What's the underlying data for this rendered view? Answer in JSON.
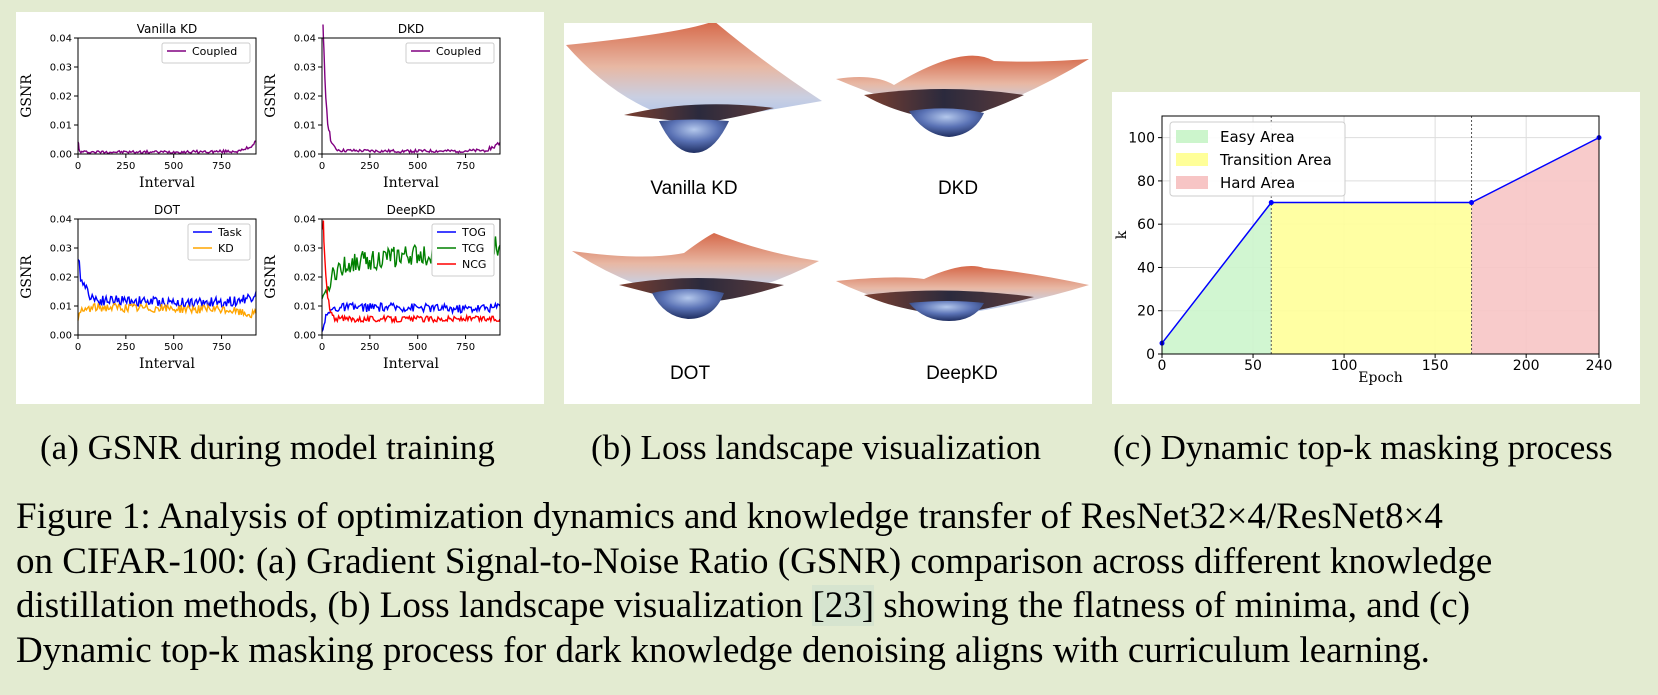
{
  "panel_a": {
    "caption": "(a) GSNR during model training",
    "subplots": [
      {
        "title": "Vanilla KD",
        "ylabel": "GSNR",
        "xlabel": "Interval",
        "legend": [
          "Coupled"
        ]
      },
      {
        "title": "DKD",
        "ylabel": "GSNR",
        "xlabel": "Interval",
        "legend": [
          "Coupled"
        ]
      },
      {
        "title": "DOT",
        "ylabel": "GSNR",
        "xlabel": "Interval",
        "legend": [
          "Task",
          "KD"
        ]
      },
      {
        "title": "DeepKD",
        "ylabel": "GSNR",
        "xlabel": "Interval",
        "legend": [
          "TOG",
          "TCG",
          "NCG"
        ]
      }
    ],
    "yticks": [
      "0.00",
      "0.01",
      "0.02",
      "0.03",
      "0.04"
    ],
    "xticks": [
      "0",
      "250",
      "500",
      "750"
    ]
  },
  "panel_b": {
    "caption": "(b) Loss landscape visualization",
    "labels": [
      "Vanilla KD",
      "DKD",
      "DOT",
      "DeepKD"
    ]
  },
  "panel_c": {
    "caption": "(c) Dynamic top-k masking process",
    "legend": [
      "Easy Area",
      "Transition Area",
      "Hard Area"
    ],
    "xlabel": "Epoch",
    "ylabel": "k",
    "xticks": [
      "0",
      "50",
      "100",
      "150",
      "200",
      "240"
    ],
    "yticks": [
      "0",
      "20",
      "40",
      "60",
      "80",
      "100"
    ]
  },
  "figure_caption": {
    "line1": "Figure 1: Analysis of optimization dynamics and knowledge transfer of ResNet32×4/ResNet8×4",
    "line2": "on CIFAR-100: (a) Gradient Signal-to-Noise Ratio (GSNR) comparison across different knowledge",
    "line3a": "distillation methods, (b) Loss landscape visualization ",
    "cite": "[23]",
    "line3b": " showing the flatness of minima, and (c)",
    "line4": "Dynamic top-k masking process for dark knowledge denoising aligns with curriculum learning."
  },
  "chart_data": [
    {
      "type": "line",
      "title": "Vanilla KD",
      "xlabel": "Interval",
      "ylabel": "GSNR",
      "xlim": [
        0,
        930
      ],
      "ylim": [
        0,
        0.04
      ],
      "series": [
        {
          "name": "Coupled",
          "color": "#800080",
          "x": [
            0,
            5,
            10,
            20,
            100,
            300,
            500,
            700,
            850,
            900,
            930
          ],
          "y": [
            0.005,
            0.0015,
            0.0008,
            0.0007,
            0.0007,
            0.0007,
            0.0007,
            0.0008,
            0.001,
            0.0025,
            0.0045
          ]
        }
      ]
    },
    {
      "type": "line",
      "title": "DKD",
      "xlabel": "Interval",
      "ylabel": "GSNR",
      "xlim": [
        0,
        930
      ],
      "ylim": [
        0,
        0.04
      ],
      "series": [
        {
          "name": "Coupled",
          "color": "#800080",
          "x": [
            5,
            10,
            20,
            30,
            40,
            50,
            60,
            80,
            100,
            300,
            500,
            700,
            850,
            900,
            930
          ],
          "y": [
            0.04,
            0.033,
            0.02,
            0.012,
            0.007,
            0.004,
            0.0025,
            0.0015,
            0.0012,
            0.001,
            0.001,
            0.001,
            0.0012,
            0.0025,
            0.004
          ]
        }
      ]
    },
    {
      "type": "line",
      "title": "DOT",
      "xlabel": "Interval",
      "ylabel": "GSNR",
      "xlim": [
        0,
        930
      ],
      "ylim": [
        0,
        0.04
      ],
      "series": [
        {
          "name": "Task",
          "color": "#0000ff",
          "x": [
            0,
            20,
            50,
            80,
            100,
            200,
            400,
            600,
            800,
            900,
            930
          ],
          "y": [
            0.024,
            0.02,
            0.015,
            0.013,
            0.012,
            0.012,
            0.0115,
            0.011,
            0.0115,
            0.013,
            0.015
          ]
        },
        {
          "name": "KD",
          "color": "#ffa500",
          "x": [
            0,
            20,
            50,
            100,
            200,
            400,
            600,
            800,
            900,
            930
          ],
          "y": [
            0.006,
            0.008,
            0.009,
            0.0095,
            0.0095,
            0.0092,
            0.009,
            0.0085,
            0.007,
            0.0075
          ]
        }
      ]
    },
    {
      "type": "line",
      "title": "DeepKD",
      "xlabel": "Interval",
      "ylabel": "GSNR",
      "xlim": [
        0,
        930
      ],
      "ylim": [
        0,
        0.04
      ],
      "series": [
        {
          "name": "TOG",
          "color": "#0000ff",
          "x": [
            0,
            10,
            20,
            40,
            60,
            100,
            300,
            500,
            700,
            900,
            930
          ],
          "y": [
            0.001,
            0.004,
            0.006,
            0.008,
            0.009,
            0.0095,
            0.0095,
            0.0095,
            0.009,
            0.0095,
            0.01
          ]
        },
        {
          "name": "TCG",
          "color": "#008000",
          "x": [
            0,
            20,
            50,
            100,
            200,
            400,
            600,
            800,
            930
          ],
          "y": [
            0.011,
            0.014,
            0.02,
            0.0235,
            0.0255,
            0.027,
            0.028,
            0.029,
            0.031
          ]
        },
        {
          "name": "NCG",
          "color": "#ff0000",
          "x": [
            5,
            10,
            20,
            30,
            40,
            50,
            60,
            80,
            100,
            300,
            600,
            930
          ],
          "y": [
            0.04,
            0.032,
            0.02,
            0.013,
            0.009,
            0.007,
            0.006,
            0.0055,
            0.0055,
            0.0055,
            0.0055,
            0.0055
          ]
        }
      ]
    },
    {
      "type": "area",
      "xlabel": "Epoch",
      "ylabel": "k",
      "xlim": [
        0,
        240
      ],
      "ylim": [
        0,
        110
      ],
      "regions": [
        {
          "name": "Easy Area",
          "from": 0,
          "to": 60,
          "color": "#ccf5cc"
        },
        {
          "name": "Transition Area",
          "from": 60,
          "to": 170,
          "color": "#ffff99"
        },
        {
          "name": "Hard Area",
          "from": 170,
          "to": 240,
          "color": "#f7c5c5"
        }
      ],
      "series": [
        {
          "name": "",
          "color": "#0000ff",
          "x": [
            0,
            60,
            170,
            240
          ],
          "y": [
            5,
            70,
            70,
            100
          ]
        }
      ]
    }
  ]
}
